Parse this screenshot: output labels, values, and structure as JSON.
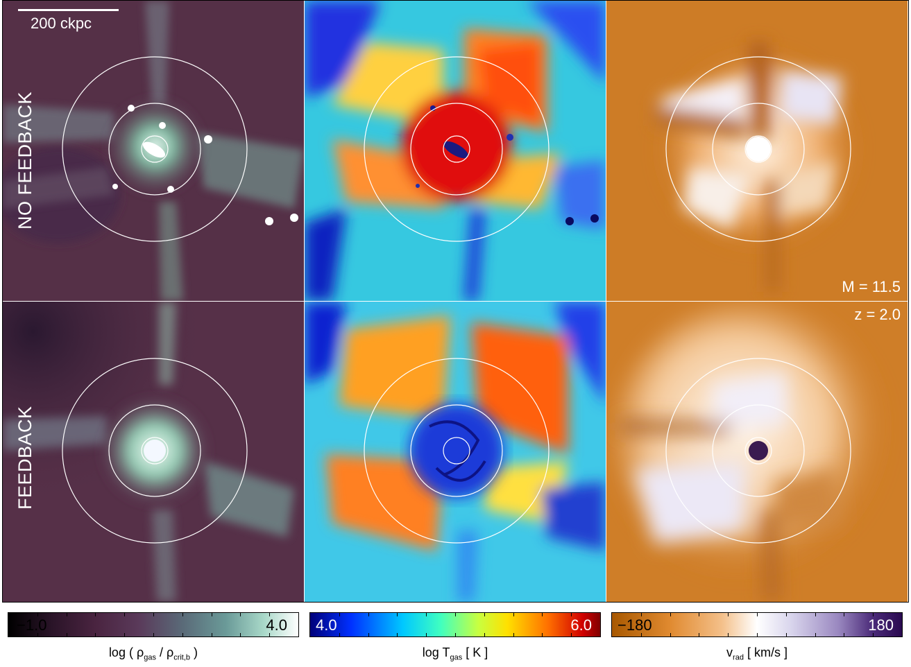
{
  "scalebar": {
    "label": "200 ckpc"
  },
  "rows": [
    {
      "label": "NO FEEDBACK"
    },
    {
      "label": "FEEDBACK"
    }
  ],
  "annotations": {
    "mass": "M = 11.5",
    "redshift": "z = 2.0"
  },
  "colorbars": [
    {
      "name": "density",
      "min": "−1.0",
      "max": "4.0",
      "label_main": "log ( ρ",
      "label_sub1": "gas",
      "label_mid": " / ρ",
      "label_sub2": "crit,b",
      "label_end": " )"
    },
    {
      "name": "temperature",
      "min": "4.0",
      "max": "6.0",
      "label_main": "log T",
      "label_sub1": "gas",
      "label_end": " [ K ]"
    },
    {
      "name": "radial-velocity",
      "min": "−180",
      "max": "180",
      "label_main": "v",
      "label_sub1": "rad",
      "label_end": " [ km/s ]"
    }
  ],
  "colors": {
    "density_bg": "#5a3048",
    "density_hi": "#d8f0e8",
    "temp_lo": "#0a0a8c",
    "temp_hi": "#b00000",
    "vrad_lo": "#c06a10",
    "vrad_hi": "#300a60"
  }
}
